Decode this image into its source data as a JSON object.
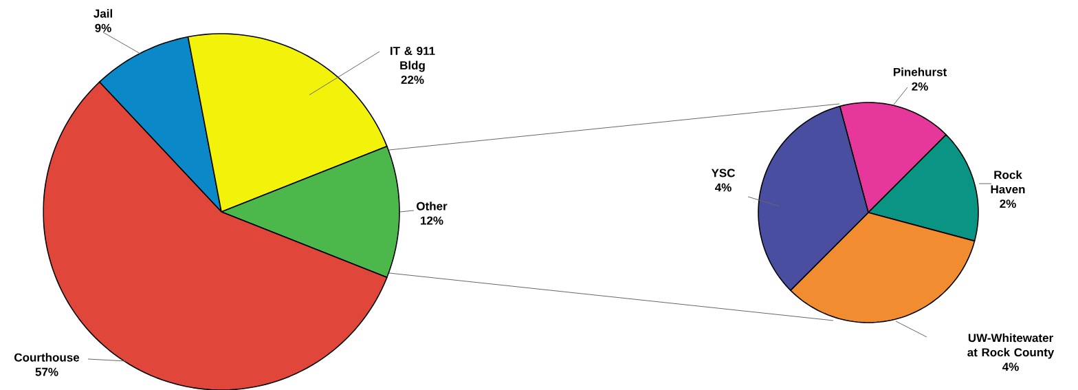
{
  "chart_data": [
    {
      "type": "pie",
      "categories": [
        "Jail",
        "IT & 911 Bldg",
        "Other",
        "Courthouse"
      ],
      "values": [
        9,
        22,
        12,
        57
      ],
      "colors": [
        "#0a88c8",
        "#f2f20a",
        "#4cb84c",
        "#e0463a"
      ],
      "value_labels": [
        "9%",
        "22%",
        "12%",
        "57%"
      ]
    },
    {
      "type": "pie",
      "categories": [
        "Pinehurst",
        "Rock Haven",
        "UW-Whitewater at Rock County",
        "YSC"
      ],
      "values": [
        2,
        2,
        4,
        4
      ],
      "colors": [
        "#e6389a",
        "#0a9484",
        "#f28c30",
        "#4a4ea0"
      ],
      "value_labels": [
        "2%",
        "2%",
        "4%",
        "4%"
      ]
    }
  ]
}
